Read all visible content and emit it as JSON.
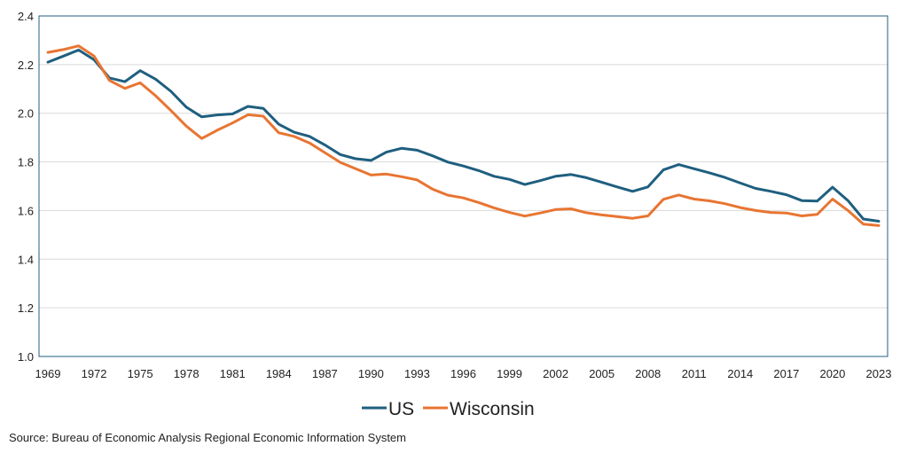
{
  "chart_data": {
    "type": "line",
    "title": "",
    "xlabel": "",
    "ylabel": "",
    "ylim": [
      1.0,
      2.4
    ],
    "yticks": [
      "1.0",
      "1.2",
      "1.4",
      "1.6",
      "1.8",
      "2.0",
      "2.2",
      "2.4"
    ],
    "xlim": [
      1969,
      2023
    ],
    "xticks": [
      "1969",
      "1972",
      "1975",
      "1978",
      "1981",
      "1984",
      "1987",
      "1990",
      "1993",
      "1996",
      "1999",
      "2002",
      "2005",
      "2008",
      "2011",
      "2014",
      "2017",
      "2020",
      "2023"
    ],
    "grid": "horizontal",
    "legend": "bottom",
    "x": [
      1969,
      1970,
      1971,
      1972,
      1973,
      1974,
      1975,
      1976,
      1977,
      1978,
      1979,
      1980,
      1981,
      1982,
      1983,
      1984,
      1985,
      1986,
      1987,
      1988,
      1989,
      1990,
      1991,
      1992,
      1993,
      1994,
      1995,
      1996,
      1997,
      1998,
      1999,
      2000,
      2001,
      2002,
      2003,
      2004,
      2005,
      2006,
      2007,
      2008,
      2009,
      2010,
      2011,
      2012,
      2013,
      2014,
      2015,
      2016,
      2017,
      2018,
      2019,
      2020,
      2021,
      2022,
      2023
    ],
    "series": [
      {
        "name": "US",
        "color": "#1f5f7f",
        "values": [
          2.21,
          2.235,
          2.26,
          2.22,
          2.145,
          2.13,
          2.175,
          2.14,
          2.09,
          2.025,
          1.985,
          1.993,
          1.997,
          2.028,
          2.02,
          1.955,
          1.922,
          1.905,
          1.87,
          1.83,
          1.813,
          1.806,
          1.84,
          1.856,
          1.848,
          1.825,
          1.799,
          1.783,
          1.764,
          1.741,
          1.728,
          1.707,
          1.723,
          1.741,
          1.748,
          1.735,
          1.716,
          1.697,
          1.679,
          1.697,
          1.767,
          1.789,
          1.772,
          1.755,
          1.736,
          1.713,
          1.691,
          1.679,
          1.665,
          1.641,
          1.639,
          1.696,
          1.641,
          1.565,
          1.556
        ]
      },
      {
        "name": "Wisconsin",
        "color": "#e87532",
        "values": [
          2.25,
          2.262,
          2.277,
          2.235,
          2.135,
          2.102,
          2.125,
          2.072,
          2.011,
          1.947,
          1.896,
          1.93,
          1.96,
          1.994,
          1.988,
          1.92,
          1.905,
          1.878,
          1.838,
          1.798,
          1.772,
          1.746,
          1.75,
          1.739,
          1.726,
          1.688,
          1.663,
          1.652,
          1.633,
          1.611,
          1.592,
          1.577,
          1.59,
          1.604,
          1.607,
          1.591,
          1.582,
          1.575,
          1.568,
          1.578,
          1.646,
          1.664,
          1.647,
          1.64,
          1.628,
          1.612,
          1.6,
          1.592,
          1.59,
          1.578,
          1.584,
          1.647,
          1.6,
          1.544,
          1.538
        ]
      }
    ]
  },
  "source_note": "Source: Bureau of Economic Analysis Regional Economic Information System"
}
